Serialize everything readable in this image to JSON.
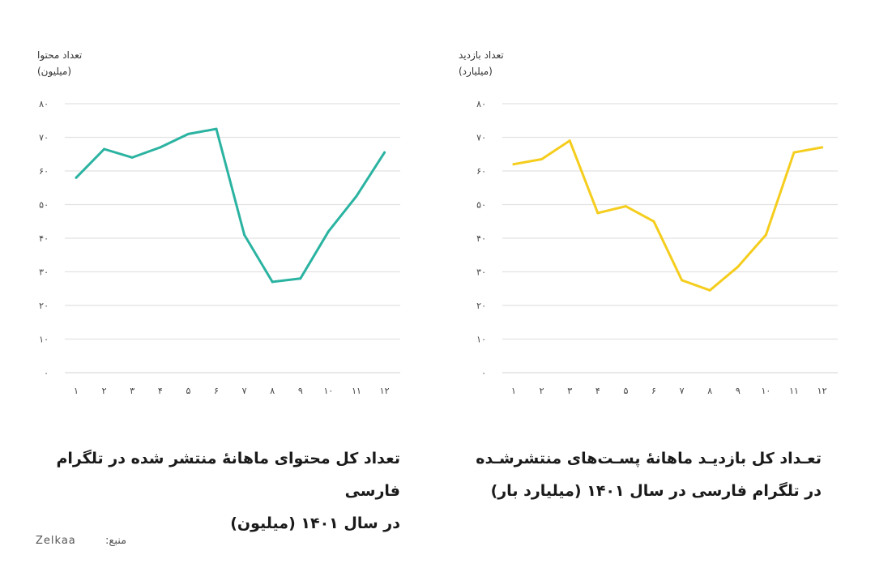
{
  "chart_data": [
    {
      "type": "line",
      "ylabel": "تعداد محتوا",
      "yunit": "(میلیون)",
      "categories": [
        "۱",
        "۲",
        "۳",
        "۴",
        "۵",
        "۶",
        "۷",
        "۸",
        "۹",
        "۱۰",
        "۱۱",
        "۱۲"
      ],
      "yticks": [
        "۰",
        "۱۰",
        "۲۰",
        "۳۰",
        "۴۰",
        "۵۰",
        "۶۰",
        "۷۰",
        "۸۰"
      ],
      "ylim": [
        0,
        80
      ],
      "grid": true,
      "color": "#2bb3a1",
      "series": [
        {
          "values": [
            58,
            66.5,
            64,
            67,
            71,
            72.5,
            41,
            27,
            28,
            42,
            52.5,
            65.5
          ]
        }
      ],
      "title": "تعداد کل محتوای ماهانهٔ منتشر شده در تلگرام فارسی در سال ۱۴۰۱ (میلیون)"
    },
    {
      "type": "line",
      "ylabel": "تعداد بازدید",
      "yunit": "(میلیارد)",
      "categories": [
        "۱",
        "۲",
        "۳",
        "۴",
        "۵",
        "۶",
        "۷",
        "۸",
        "۹",
        "۱۰",
        "۱۱",
        "۱۲"
      ],
      "yticks": [
        "۰",
        "۱۰",
        "۲۰",
        "۳۰",
        "۴۰",
        "۵۰",
        "۶۰",
        "۷۰",
        "۸۰"
      ],
      "ylim": [
        0,
        80
      ],
      "grid": true,
      "color": "#f5cd1d",
      "series": [
        {
          "values": [
            62,
            63.5,
            69,
            47.5,
            49.5,
            45,
            27.5,
            24.5,
            31.5,
            41,
            65.5,
            67
          ]
        }
      ],
      "title": "تعداد کل بازدید ماهانهٔ پست‌های منتشرشده در تلگرام فارسی در سال ۱۴۰۱ (میلیارد بار)"
    }
  ],
  "captions": {
    "left_line1": "تعداد کل محتوای ماهانهٔ منتشر شده در تلگرام فارسی",
    "left_line2": "در سال ۱۴۰۱ (میلیون)",
    "right_line1": "تعـداد کل بازدیـد ماهانهٔ پسـت‌های منتشرشـده",
    "right_line2": "در تلگرام فارسی در سال ۱۴۰۱ (میلیارد بار)"
  },
  "source": {
    "label": "منبع:",
    "name": "Zelkaa"
  }
}
